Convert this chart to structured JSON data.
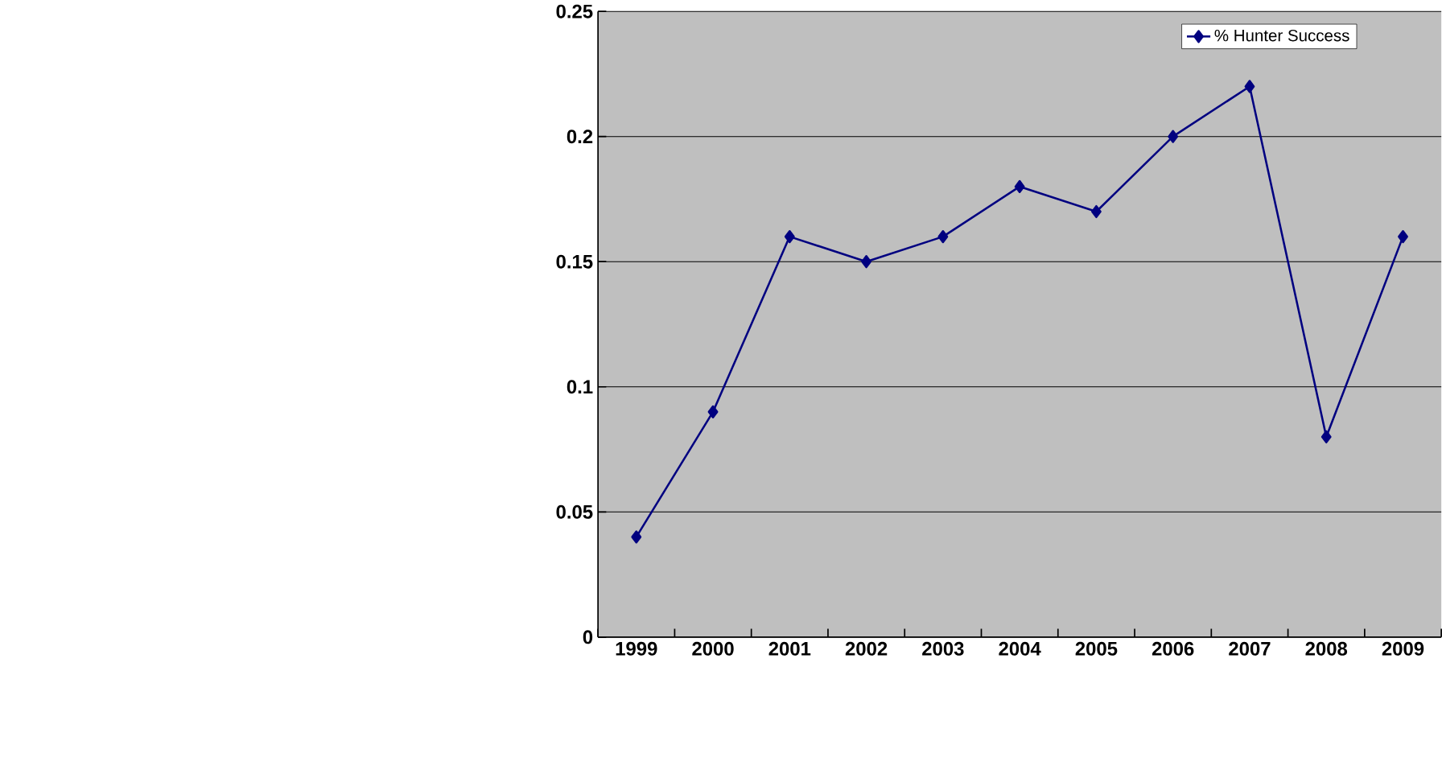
{
  "chart_data": {
    "type": "line",
    "categories": [
      "1999",
      "2000",
      "2001",
      "2002",
      "2003",
      "2004",
      "2005",
      "2006",
      "2007",
      "2008",
      "2009"
    ],
    "series": [
      {
        "name": "% Hunter Success",
        "color": "#000080",
        "values": [
          0.04,
          0.09,
          0.16,
          0.15,
          0.16,
          0.18,
          0.17,
          0.2,
          0.22,
          0.08,
          0.16
        ]
      }
    ],
    "ylim": [
      0,
      0.25
    ],
    "yticks": [
      0,
      0.05,
      0.1,
      0.15,
      0.2,
      0.25
    ],
    "grid": "y",
    "legend": "top right",
    "marker": "diamond",
    "line_style": "solid"
  }
}
